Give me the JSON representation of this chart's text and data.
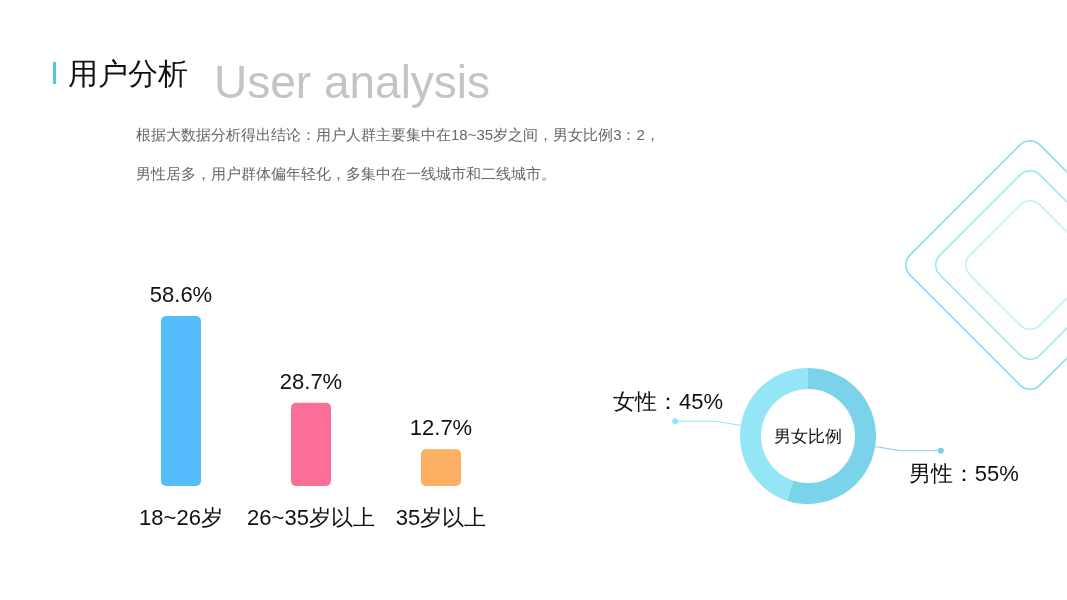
{
  "chart_data": [
    {
      "type": "bar",
      "title": "用户分析",
      "subtitle": "User analysis",
      "annotations": [
        "根据大数据分析得出结论：用户人群主要集中在18~35岁之间，男女比例3：2，",
        "男性居多，用户群体偏年轻化，多集中在一线城市和二线城市。"
      ],
      "categories": [
        "18~26岁",
        "26~35岁以上",
        "35岁以上"
      ],
      "values": [
        58.6,
        28.7,
        12.7
      ],
      "colors": [
        "#56bdfc",
        "#fb6e95",
        "#fdaf64"
      ],
      "value_labels": [
        "58.6%",
        "28.7%",
        "12.7%"
      ]
    },
    {
      "type": "donut",
      "title": "男女比例",
      "categories": [
        "男性",
        "女性"
      ],
      "values": [
        55,
        45
      ],
      "colors": [
        "#7ad3ea",
        "#94e6f7"
      ],
      "value_labels": [
        "：55%",
        "：45%"
      ]
    }
  ]
}
